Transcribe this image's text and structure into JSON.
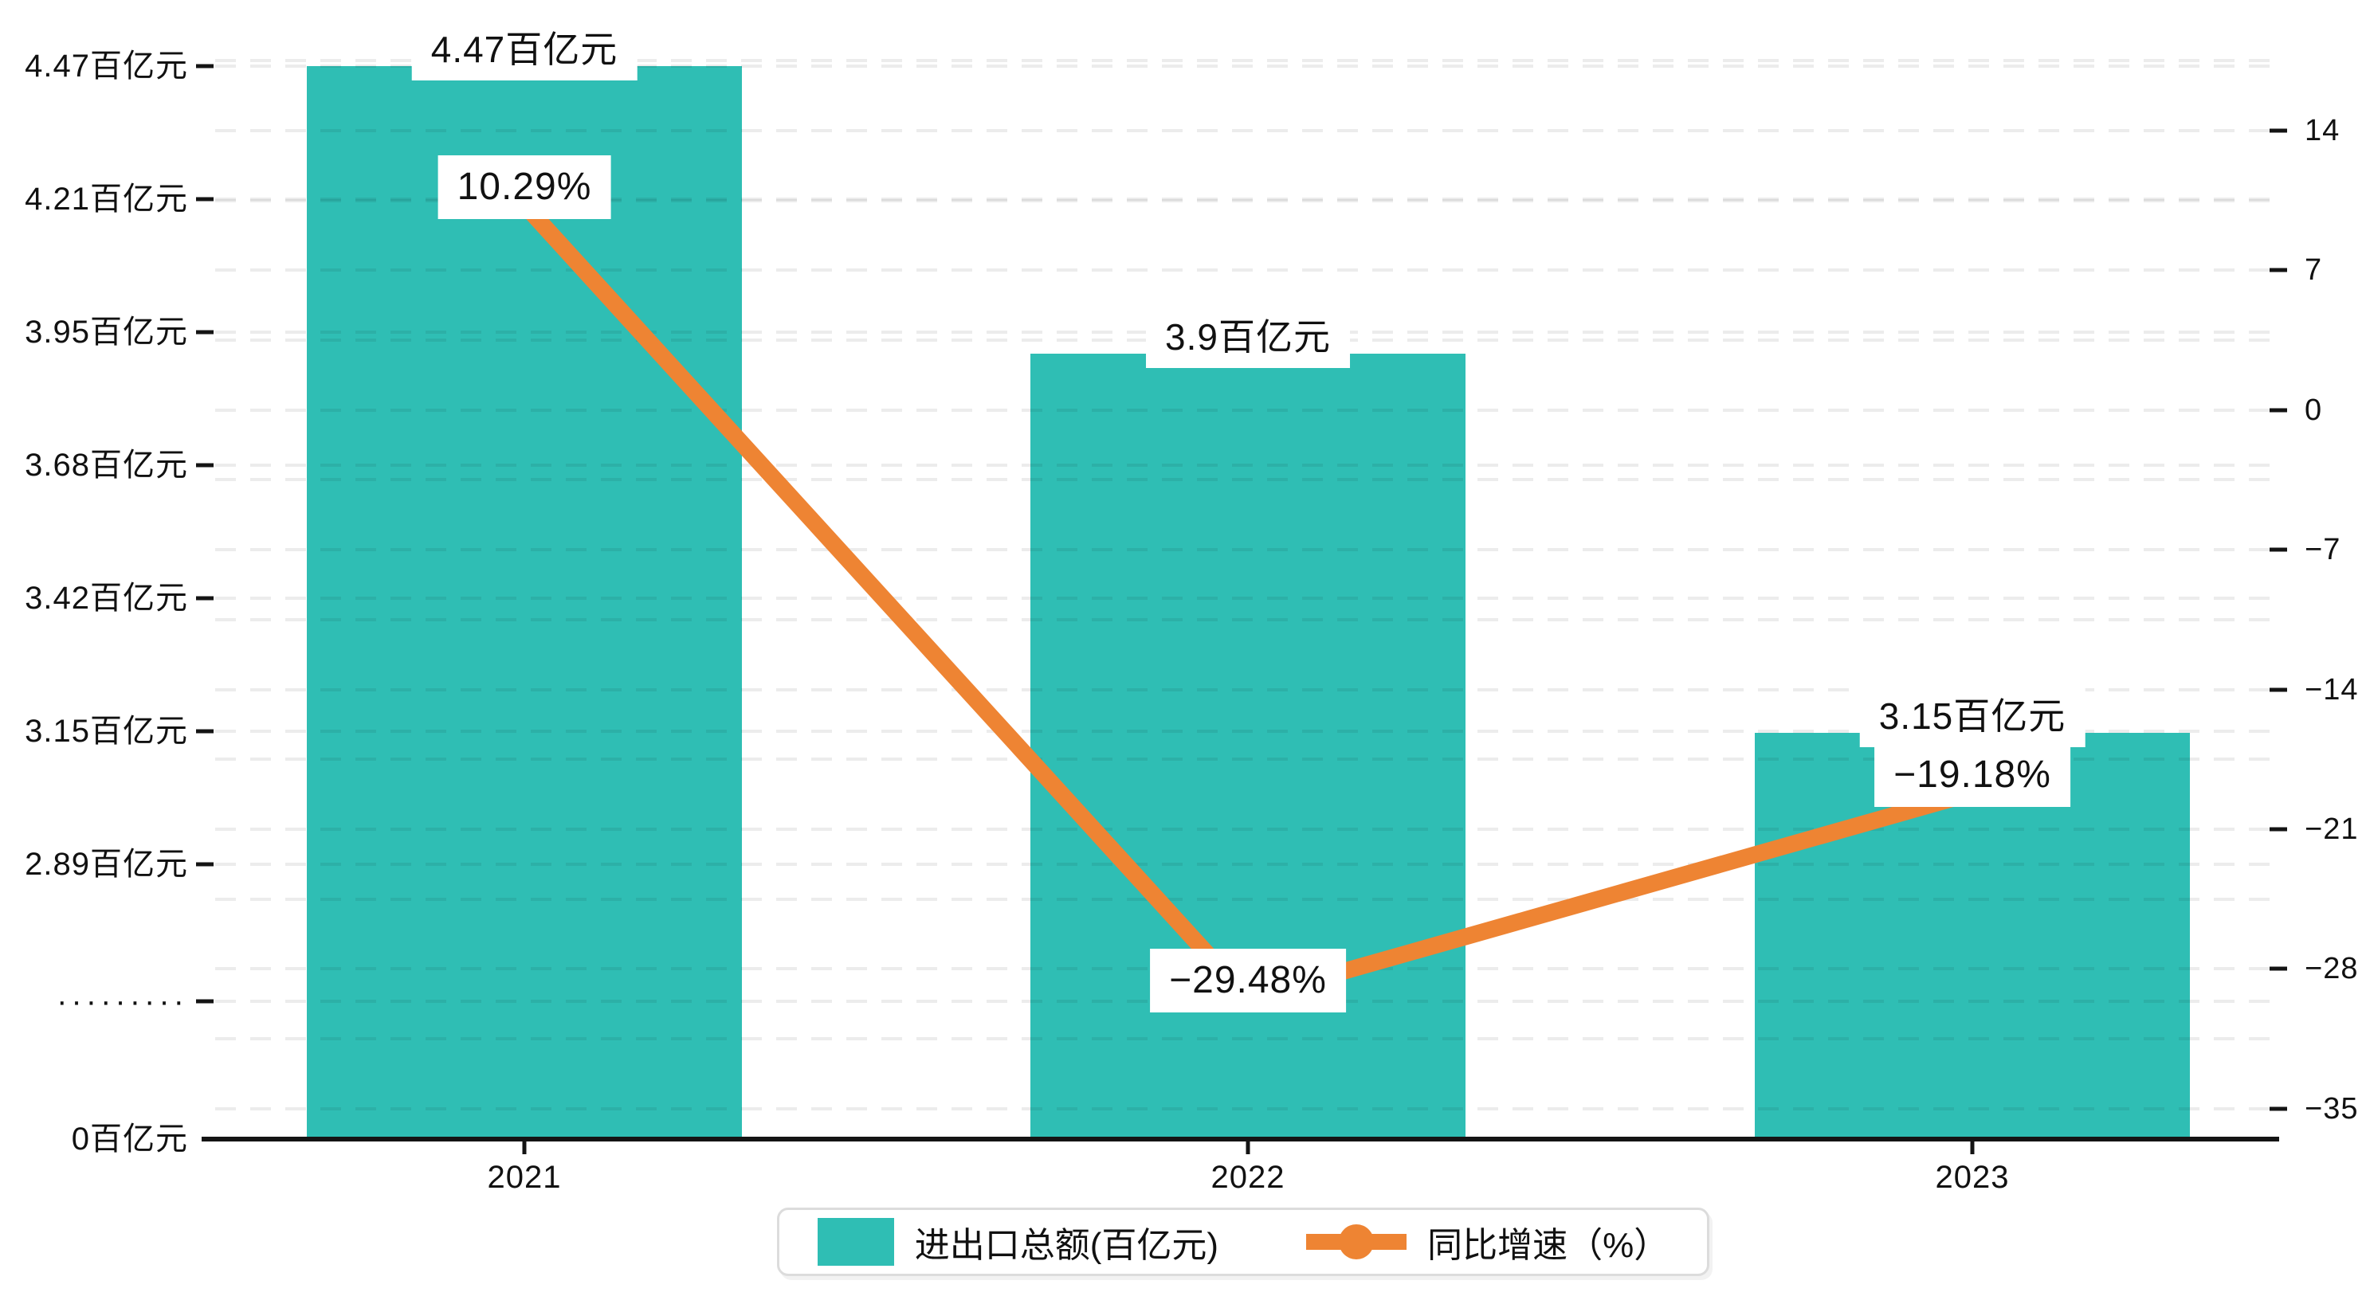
{
  "chart_data": {
    "type": "combo",
    "categories": [
      "2021",
      "2022",
      "2023"
    ],
    "series": [
      {
        "name": "进出口总额(百亿元)",
        "type": "bar",
        "unit": "百亿元",
        "values": [
          4.47,
          3.9,
          3.15
        ],
        "labels": [
          "4.47百亿元",
          "3.9百亿元",
          "3.15百亿元"
        ],
        "color": "#2fbeb4"
      },
      {
        "name": "同比增速（%）",
        "type": "line",
        "unit": "%",
        "values": [
          10.29,
          -29.48,
          -19.18
        ],
        "labels": [
          "10.29%",
          "−29.48%",
          "−19.18%"
        ],
        "color": "#ee8433"
      }
    ],
    "left_axis": {
      "ticks": [
        "4.47百亿元",
        "4.21百亿元",
        "3.95百亿元",
        "3.68百亿元",
        "3.42百亿元",
        "3.15百亿元",
        "2.89百亿元",
        "·········",
        "0百亿元"
      ],
      "broken_axis_marker": "·········"
    },
    "right_axis": {
      "ticks": [
        14,
        7,
        0,
        -7,
        -14,
        -21,
        -28,
        -35
      ],
      "range": [
        -35,
        14
      ]
    },
    "legend": [
      {
        "label": "进出口总额(百亿元)",
        "marker": "square",
        "color": "#2fbeb4"
      },
      {
        "label": "同比增速（%）",
        "marker": "line-dot",
        "color": "#ee8433"
      }
    ],
    "grid": "dashed",
    "background": "#ffffff",
    "axis_color": "#141414",
    "text_color": "#111111"
  }
}
